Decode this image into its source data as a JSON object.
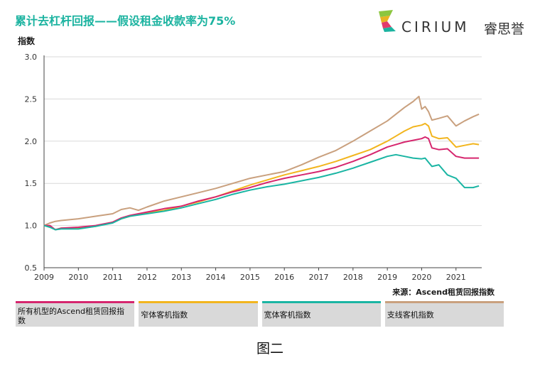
{
  "title": "累计去杠杆回报——假设租金收款率为75%",
  "logo": {
    "text": "CIRIUM",
    "cn": "睿思誉"
  },
  "source": "来源：Ascend租赁回报指数",
  "caption": "图二",
  "chart_data": {
    "type": "line",
    "ylabel": "指数",
    "xlabel": "",
    "ylim": [
      0.5,
      3.0
    ],
    "xlim": [
      2009.0,
      2021.75
    ],
    "yticks": [
      "0.5",
      "1.0",
      "1.5",
      "2.0",
      "2.5",
      "3.0"
    ],
    "xticks": [
      "2009",
      "2010",
      "2011",
      "2012",
      "2013",
      "2014",
      "2015",
      "2016",
      "2017",
      "2018",
      "2019",
      "2020",
      "2021"
    ],
    "grid": true,
    "legend_position": "bottom",
    "series": [
      {
        "name": "所有机型的Ascend租赁回报指数",
        "color": "#d6266e",
        "x": [
          2009.0,
          2009.17,
          2009.33,
          2009.5,
          2010.0,
          2010.5,
          2011.0,
          2011.25,
          2011.5,
          2012.0,
          2012.5,
          2013.0,
          2013.5,
          2014.0,
          2014.5,
          2015.0,
          2015.5,
          2016.0,
          2016.5,
          2017.0,
          2017.5,
          2018.0,
          2018.5,
          2019.0,
          2019.25,
          2019.5,
          2019.75,
          2020.0,
          2020.1,
          2020.2,
          2020.3,
          2020.5,
          2020.75,
          2021.0,
          2021.25,
          2021.5,
          2021.67
        ],
        "y": [
          1.0,
          1.0,
          0.95,
          0.97,
          0.98,
          1.0,
          1.04,
          1.09,
          1.12,
          1.16,
          1.2,
          1.23,
          1.29,
          1.34,
          1.4,
          1.45,
          1.51,
          1.56,
          1.6,
          1.64,
          1.69,
          1.76,
          1.84,
          1.93,
          1.96,
          1.99,
          2.01,
          2.03,
          2.05,
          2.03,
          1.92,
          1.9,
          1.91,
          1.82,
          1.8,
          1.8,
          1.8
        ]
      },
      {
        "name": "窄体客机指数",
        "color": "#f2b51e",
        "x": [
          2009.0,
          2009.17,
          2009.33,
          2009.5,
          2010.0,
          2010.5,
          2011.0,
          2011.25,
          2011.5,
          2012.0,
          2012.5,
          2013.0,
          2013.5,
          2014.0,
          2014.5,
          2015.0,
          2015.5,
          2016.0,
          2016.5,
          2017.0,
          2017.5,
          2018.0,
          2018.5,
          2019.0,
          2019.25,
          2019.5,
          2019.75,
          2020.0,
          2020.1,
          2020.2,
          2020.3,
          2020.5,
          2020.75,
          2021.0,
          2021.25,
          2021.5,
          2021.67
        ],
        "y": [
          1.0,
          0.99,
          0.95,
          0.97,
          0.97,
          0.99,
          1.04,
          1.08,
          1.11,
          1.15,
          1.18,
          1.23,
          1.28,
          1.34,
          1.41,
          1.48,
          1.54,
          1.6,
          1.65,
          1.7,
          1.76,
          1.83,
          1.9,
          2.0,
          2.06,
          2.12,
          2.17,
          2.19,
          2.21,
          2.18,
          2.06,
          2.03,
          2.04,
          1.93,
          1.95,
          1.97,
          1.96
        ]
      },
      {
        "name": "宽体客机指数",
        "color": "#1ab5a3",
        "x": [
          2009.0,
          2009.17,
          2009.33,
          2009.5,
          2010.0,
          2010.5,
          2011.0,
          2011.25,
          2011.5,
          2012.0,
          2012.5,
          2013.0,
          2013.5,
          2014.0,
          2014.5,
          2015.0,
          2015.5,
          2016.0,
          2016.5,
          2017.0,
          2017.5,
          2018.0,
          2018.5,
          2019.0,
          2019.25,
          2019.5,
          2019.75,
          2020.0,
          2020.1,
          2020.2,
          2020.3,
          2020.5,
          2020.75,
          2021.0,
          2021.25,
          2021.5,
          2021.67
        ],
        "y": [
          1.0,
          0.98,
          0.95,
          0.96,
          0.96,
          0.99,
          1.03,
          1.08,
          1.11,
          1.14,
          1.17,
          1.21,
          1.26,
          1.31,
          1.37,
          1.42,
          1.46,
          1.49,
          1.53,
          1.57,
          1.62,
          1.68,
          1.75,
          1.82,
          1.84,
          1.82,
          1.8,
          1.79,
          1.8,
          1.75,
          1.7,
          1.72,
          1.6,
          1.56,
          1.45,
          1.45,
          1.47
        ]
      },
      {
        "name": "支线客机指数",
        "color": "#c9a07e",
        "x": [
          2009.0,
          2009.17,
          2009.33,
          2009.5,
          2010.0,
          2010.5,
          2011.0,
          2011.25,
          2011.5,
          2011.75,
          2012.0,
          2012.5,
          2013.0,
          2013.5,
          2014.0,
          2014.5,
          2015.0,
          2015.5,
          2016.0,
          2016.25,
          2016.5,
          2017.0,
          2017.5,
          2018.0,
          2018.5,
          2019.0,
          2019.25,
          2019.5,
          2019.75,
          2019.92,
          2020.0,
          2020.1,
          2020.2,
          2020.3,
          2020.5,
          2020.75,
          2021.0,
          2021.25,
          2021.5,
          2021.67
        ],
        "y": [
          1.0,
          1.03,
          1.05,
          1.06,
          1.08,
          1.11,
          1.14,
          1.19,
          1.21,
          1.18,
          1.22,
          1.29,
          1.34,
          1.39,
          1.44,
          1.5,
          1.56,
          1.6,
          1.64,
          1.68,
          1.72,
          1.81,
          1.89,
          2.0,
          2.12,
          2.24,
          2.32,
          2.4,
          2.47,
          2.53,
          2.38,
          2.41,
          2.35,
          2.25,
          2.27,
          2.3,
          2.18,
          2.24,
          2.29,
          2.32
        ]
      }
    ]
  }
}
